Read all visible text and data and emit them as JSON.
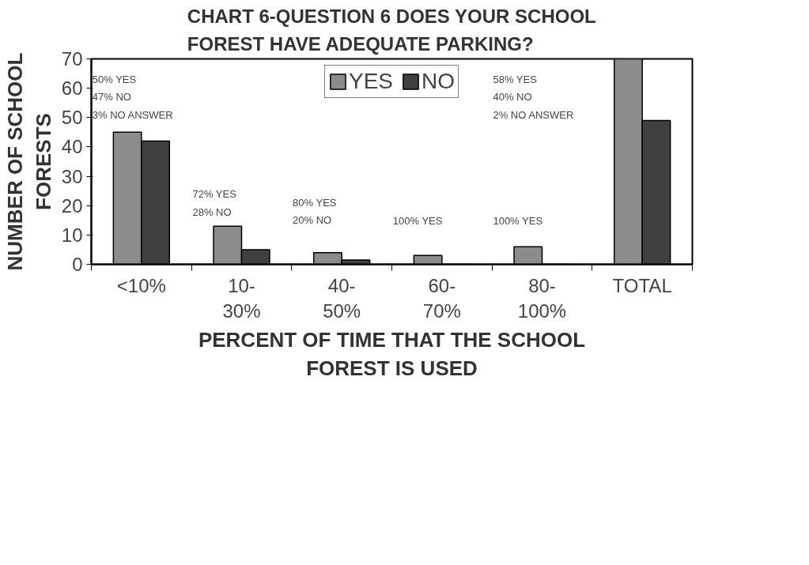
{
  "chart_data": {
    "type": "bar",
    "title": "CHART 6-QUESTION 6 DOES YOUR SCHOOL FOREST HAVE ADEQUATE PARKING?",
    "xlabel": "PERCENT OF TIME THAT THE SCHOOL FOREST IS USED",
    "ylabel": "NUMBER OF SCHOOL FORESTS",
    "categories": [
      "<10%",
      "10-30%",
      "40-50%",
      "60-70%",
      "80-100%",
      "TOTAL"
    ],
    "series": [
      {
        "name": "YES",
        "color": "#8c8c8c",
        "values": [
          45,
          13,
          4,
          3,
          6,
          70
        ]
      },
      {
        "name": "NO",
        "color": "#404040",
        "values": [
          42,
          5,
          1.5,
          0,
          0,
          49
        ]
      }
    ],
    "ylim": [
      0,
      70
    ],
    "yticks": [
      0,
      10,
      20,
      30,
      40,
      50,
      60,
      70
    ],
    "grid": false,
    "legend": "top",
    "annotations": [
      "50% YES\n47% NO\n3% NO ANSWER",
      "72% YES\n28% NO",
      "80% YES\n20% NO",
      "100% YES",
      "100% YES",
      "58% YES\n40% NO\n2% NO ANSWER"
    ]
  }
}
